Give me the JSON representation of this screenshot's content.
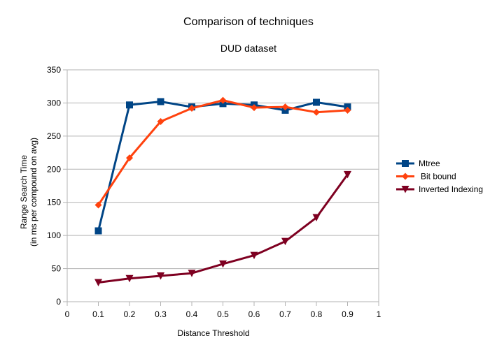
{
  "chart_data": {
    "type": "line",
    "title": "Comparison of techniques",
    "subtitle": "DUD dataset",
    "xlabel": "Distance Threshold",
    "ylabel": [
      "Range Search Time",
      "(in ms per compound on avg)"
    ],
    "xlim": [
      0,
      1
    ],
    "ylim": [
      0,
      350
    ],
    "x_ticks": [
      "0",
      "0.1",
      "0.2",
      "0.3",
      "0.4",
      "0.5",
      "0.6",
      "0.7",
      "0.8",
      "0.9",
      "1"
    ],
    "y_ticks": [
      "0",
      "50",
      "100",
      "150",
      "200",
      "250",
      "300",
      "350"
    ],
    "grid": "horizontal",
    "legend_position": "right",
    "x": [
      0.1,
      0.2,
      0.3,
      0.4,
      0.5,
      0.6,
      0.7,
      0.8,
      0.9
    ],
    "series": [
      {
        "name": "Mtree",
        "color": "#004586",
        "marker": "square",
        "values": [
          107,
          297,
          302,
          294,
          299,
          297,
          289,
          301,
          294
        ]
      },
      {
        "name": "Bit bound",
        "color": "#ff420e",
        "marker": "diamond",
        "values": [
          146,
          217,
          272,
          292,
          304,
          293,
          294,
          286,
          289
        ]
      },
      {
        "name": "Inverted Indexing",
        "color": "#7e0021",
        "marker": "triangle-down",
        "values": [
          29,
          35,
          39,
          43,
          57,
          70,
          91,
          127,
          192
        ]
      }
    ]
  }
}
